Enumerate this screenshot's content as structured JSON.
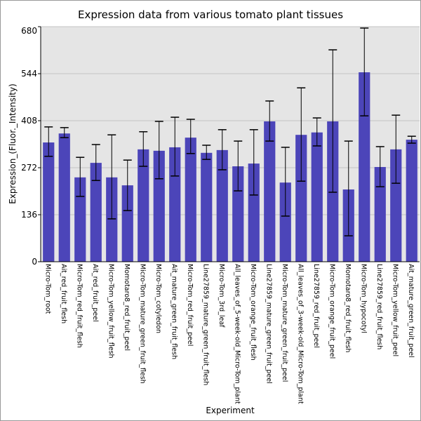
{
  "chart_data": {
    "type": "bar",
    "title": "Expression data from various tomato plant tissues",
    "xlabel": "Experiment",
    "ylabel": "Expression_(Fluor._Intensity)",
    "ylim": [
      0,
      680
    ],
    "yticks": [
      0,
      136,
      272,
      408,
      544,
      680
    ],
    "grid": true,
    "bar_color": "#4c45b9",
    "background_color": "#e5e5e5",
    "categories": [
      "Micro-Tom_root",
      "Ait_red_fruit_flesh",
      "Micro-Tom_red_fruit_flesh",
      "Ait_red_fruit_peel",
      "Micro-Tom_yellow_fruit_flesh",
      "Momotaro8_red_fruit_peel",
      "Micro-Tom_mature_green_fruit_flesh",
      "Micro-Tom_cotyledon",
      "Ait_mature_green_fruit_flesh",
      "Micro-Tom_red_fruit_peel",
      "Line27859_mature_green_fruit_flesh",
      "Micro-Tom_3rd_leaf",
      "All_leaves_of_5-week-old_Micro-Tom_plant",
      "Micro-Tom_orange_fruit_flesh",
      "Line27859_mature_green_fruit_peel",
      "Micro-Tom_mature_green_fruit_peel",
      "All_leaves_of_3-week-old_Micro-Tom_plant",
      "Line27859_red_fruit_peel",
      "Micro-Tom_orange_fruit_peel",
      "Momotaro8_red_fruit_flesh",
      "Micro-Tom_hypocotyl",
      "Line27859_red_fruit_flesh",
      "Micro-Tom_yellow_fruit_peel",
      "Ait_mature_green_fruit_peel"
    ],
    "values": [
      345,
      371,
      244,
      286,
      244,
      221,
      325,
      321,
      331,
      359,
      315,
      323,
      276,
      284,
      406,
      229,
      367,
      374,
      406,
      209,
      548,
      274,
      325,
      353
    ],
    "error_high": [
      390,
      388,
      302,
      339,
      367,
      294,
      376,
      406,
      418,
      412,
      337,
      382,
      349,
      382,
      465,
      331,
      503,
      416,
      613,
      349,
      676,
      333,
      424,
      363
    ],
    "error_low": [
      305,
      359,
      189,
      235,
      124,
      148,
      276,
      240,
      248,
      313,
      296,
      266,
      205,
      193,
      349,
      132,
      233,
      335,
      201,
      75,
      422,
      217,
      227,
      343
    ]
  }
}
